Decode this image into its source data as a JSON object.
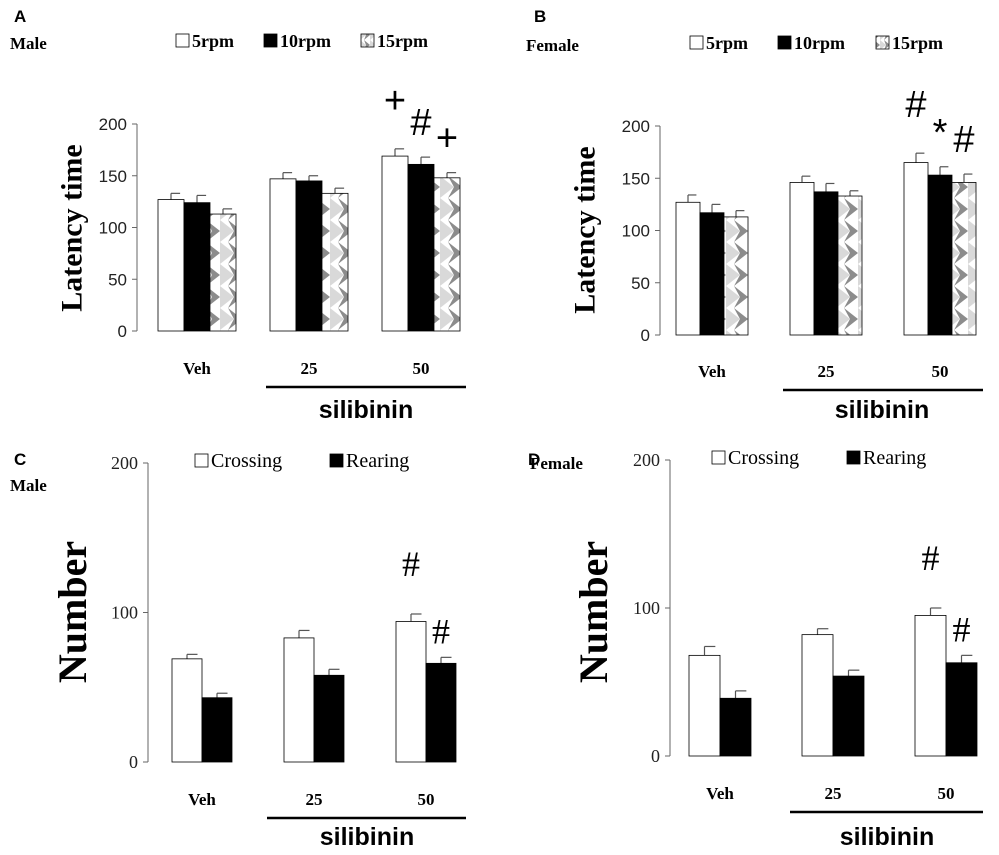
{
  "colors": {
    "bar_white": "#ffffff",
    "bar_black": "#000000",
    "bar_pattern_light": "#d9d9d9",
    "bar_pattern_dark": "#8c8c8c",
    "axis": "#666666"
  },
  "chart_data": [
    {
      "panel": "A",
      "subtitle": "Male",
      "type": "bar",
      "ylabel": "Latency time",
      "xlabel": "",
      "group_label": "silibinin",
      "categories": [
        "Veh",
        "25",
        "50"
      ],
      "ylim": [
        0,
        200
      ],
      "yticks": [
        "0",
        "50",
        "100",
        "150",
        "200"
      ],
      "legend_position": "top",
      "series": [
        {
          "name": "5rpm",
          "values": [
            127,
            147,
            169
          ],
          "errors": [
            6,
            6,
            7
          ],
          "style": "white"
        },
        {
          "name": "10rpm",
          "values": [
            124,
            145,
            161
          ],
          "errors": [
            7,
            5,
            7
          ],
          "style": "black"
        },
        {
          "name": "15rpm",
          "values": [
            113,
            133,
            148
          ],
          "errors": [
            5,
            5,
            5
          ],
          "style": "pattern"
        }
      ],
      "annotations": [
        {
          "category": "50",
          "series": "5rpm",
          "text": "+"
        },
        {
          "category": "50",
          "series": "10rpm",
          "text": "#"
        },
        {
          "category": "50",
          "series": "15rpm",
          "text": "+"
        }
      ]
    },
    {
      "panel": "B",
      "subtitle": "Female",
      "type": "bar",
      "ylabel": "Latency time",
      "xlabel": "",
      "group_label": "silibinin",
      "categories": [
        "Veh",
        "25",
        "50"
      ],
      "ylim": [
        0,
        200
      ],
      "yticks": [
        "0",
        "50",
        "100",
        "150",
        "200"
      ],
      "legend_position": "top",
      "series": [
        {
          "name": "5rpm",
          "values": [
            127,
            146,
            165
          ],
          "errors": [
            7,
            6,
            9
          ],
          "style": "white"
        },
        {
          "name": "10rpm",
          "values": [
            117,
            137,
            153
          ],
          "errors": [
            8,
            8,
            8
          ],
          "style": "black"
        },
        {
          "name": "15rpm",
          "values": [
            113,
            133,
            146
          ],
          "errors": [
            6,
            5,
            8
          ],
          "style": "pattern"
        }
      ],
      "annotations": [
        {
          "category": "50",
          "series": "5rpm",
          "text": "#"
        },
        {
          "category": "50",
          "series": "10rpm",
          "text": "*"
        },
        {
          "category": "50",
          "series": "15rpm",
          "text": "#"
        }
      ]
    },
    {
      "panel": "C",
      "subtitle": "Male",
      "type": "bar",
      "ylabel": "Number",
      "xlabel": "",
      "group_label": "silibinin",
      "categories": [
        "Veh",
        "25",
        "50"
      ],
      "ylim": [
        0,
        200
      ],
      "yticks": [
        "0",
        "100",
        "200"
      ],
      "legend_position": "top",
      "series": [
        {
          "name": "Crossing",
          "values": [
            69,
            83,
            94
          ],
          "errors": [
            3,
            5,
            5
          ],
          "style": "white"
        },
        {
          "name": "Rearing",
          "values": [
            43,
            58,
            66
          ],
          "errors": [
            3,
            4,
            4
          ],
          "style": "black"
        }
      ],
      "annotations": [
        {
          "category": "50",
          "series": "Crossing",
          "text": "#"
        },
        {
          "category": "50",
          "series": "Rearing",
          "text": "#"
        }
      ]
    },
    {
      "panel": "D",
      "subtitle": "Female",
      "type": "bar",
      "ylabel": "Number",
      "xlabel": "",
      "group_label": "silibinin",
      "categories": [
        "Veh",
        "25",
        "50"
      ],
      "ylim": [
        0,
        200
      ],
      "yticks": [
        "0",
        "100",
        "200"
      ],
      "legend_position": "top",
      "series": [
        {
          "name": "Crossing",
          "values": [
            68,
            82,
            95
          ],
          "errors": [
            6,
            4,
            5
          ],
          "style": "white"
        },
        {
          "name": "Rearing",
          "values": [
            39,
            54,
            63
          ],
          "errors": [
            5,
            4,
            5
          ],
          "style": "black"
        }
      ],
      "annotations": [
        {
          "category": "50",
          "series": "Crossing",
          "text": "#"
        },
        {
          "category": "50",
          "series": "Rearing",
          "text": "#"
        }
      ]
    }
  ]
}
